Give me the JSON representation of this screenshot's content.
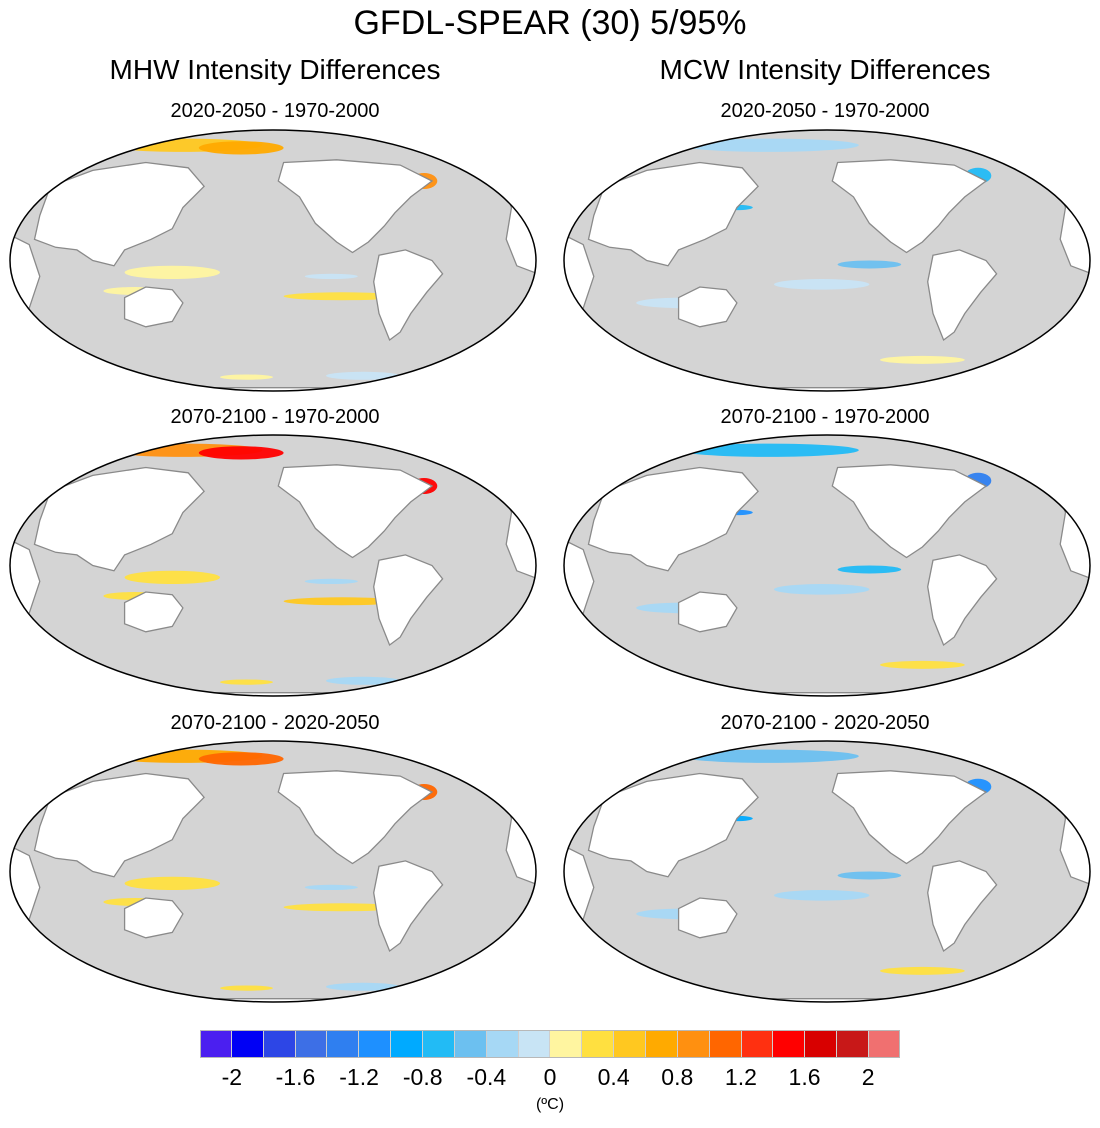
{
  "title": "GFDL-SPEAR (30) 5/95%",
  "columns": [
    "MHW Intensity Differences",
    "MCW Intensity Differences"
  ],
  "panels": [
    {
      "label": "2020-2050 - 1970-2000",
      "field": "mhw",
      "strength": 0.55
    },
    {
      "label": "2020-2050 - 1970-2000",
      "field": "mcw",
      "strength": 0.55
    },
    {
      "label": "2070-2100 - 1970-2000",
      "field": "mhw",
      "strength": 1.0
    },
    {
      "label": "2070-2100 - 1970-2000",
      "field": "mcw",
      "strength": 1.0
    },
    {
      "label": "2070-2100 - 2020-2050",
      "field": "mhw",
      "strength": 0.75
    },
    {
      "label": "2070-2100 - 2020-2050",
      "field": "mcw",
      "strength": 0.75
    }
  ],
  "colorbar": {
    "colors": [
      "#4b1ff0",
      "#0000f5",
      "#2d46e6",
      "#3d6fe6",
      "#2f7ff0",
      "#1e90ff",
      "#00aaff",
      "#22bbf5",
      "#6cc0f0",
      "#a6d8f5",
      "#c8e4f5",
      "#fff5a0",
      "#ffe040",
      "#ffc820",
      "#ffaa00",
      "#ff9010",
      "#ff6600",
      "#ff3010",
      "#ff0000",
      "#d80000",
      "#c81818",
      "#f07070"
    ],
    "tick_labels": [
      "-2",
      "-1.6",
      "-1.2",
      "-0.8",
      "-0.4",
      "0",
      "0.4",
      "0.8",
      "1.2",
      "1.6",
      "2"
    ],
    "unit": "(ºC)"
  },
  "map_colors": {
    "ocean": "#d4d4d4",
    "land": "#ffffff",
    "coast": "#8a8a8a"
  }
}
